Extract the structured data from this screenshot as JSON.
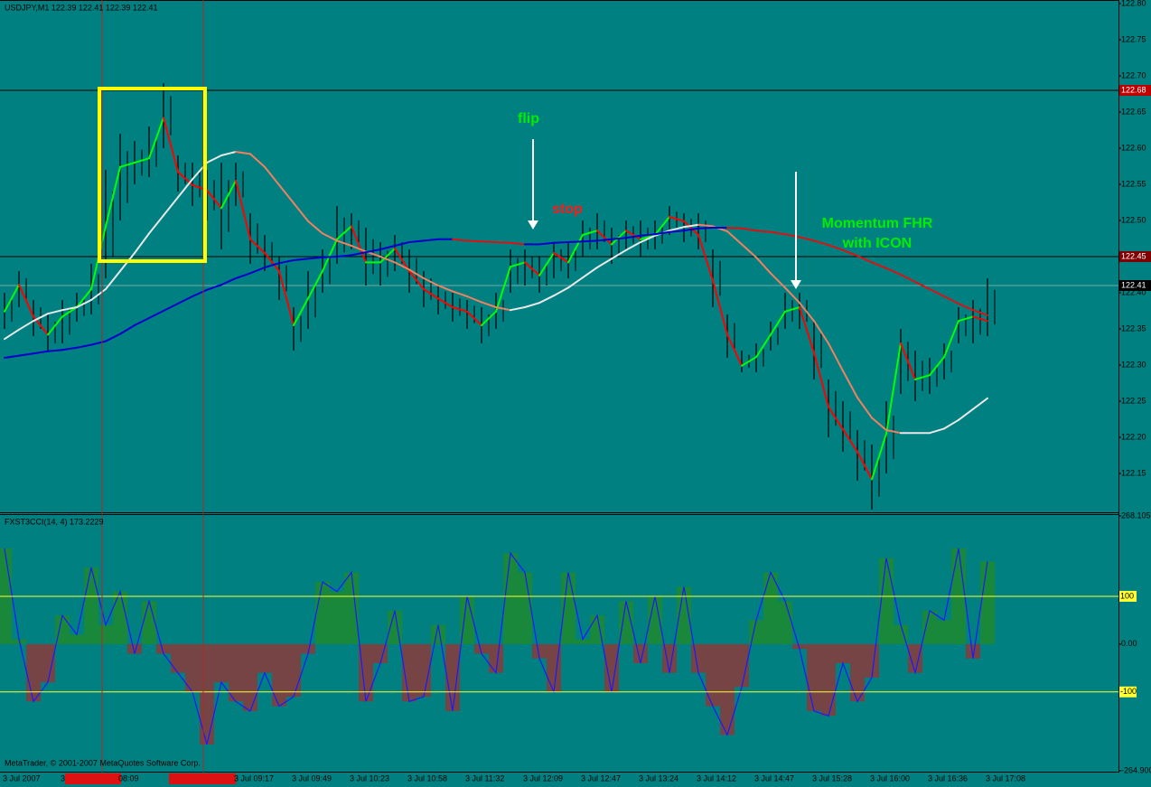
{
  "chart_data": [
    {
      "type": "ohlc",
      "title": "USDJPY,M1  122.39 122.41 122.39 122.41",
      "categories": [
        "3 Jul 2007",
        null,
        null,
        null,
        "3",
        null,
        null,
        null,
        "08:09",
        null,
        null,
        null,
        null,
        null,
        null,
        null,
        "3 Jul 09:17",
        null,
        null,
        null,
        "3 Jul 09:49",
        null,
        null,
        null,
        "3 Jul 10:23",
        null,
        null,
        null,
        "3 Jul 10:58",
        null,
        null,
        null,
        "3 Jul 11:32",
        null,
        null,
        null,
        "3 Jul 12:09",
        null,
        null,
        null,
        "3 Jul 12:47",
        null,
        null,
        null,
        "3 Jul 13:24",
        null,
        null,
        null,
        "3 Jul 14:12",
        null,
        null,
        null,
        "3 Jul 14:47",
        null,
        null,
        null,
        "3 Jul 15:28",
        null,
        null,
        null,
        "3 Jul 16:00",
        null,
        null,
        null,
        "3 Jul 16:36",
        null,
        null,
        null,
        "3 Jul 17:08"
      ],
      "high": [
        122.4,
        122.43,
        122.39,
        122.37,
        122.39,
        122.4,
        122.44,
        122.57,
        122.62,
        122.61,
        122.63,
        122.69,
        122.59,
        122.58,
        122.57,
        122.58,
        122.58,
        122.51,
        122.48,
        122.45,
        122.38,
        122.43,
        122.46,
        122.52,
        122.51,
        122.49,
        122.47,
        122.48,
        122.46,
        122.43,
        122.41,
        122.4,
        122.39,
        122.38,
        122.4,
        122.46,
        122.46,
        122.45,
        122.47,
        122.47,
        122.5,
        122.51,
        122.49,
        122.5,
        122.5,
        122.5,
        122.52,
        122.51,
        122.51,
        122.46,
        122.37,
        122.32,
        122.33,
        122.36,
        122.4,
        122.4,
        122.36,
        122.28,
        122.25,
        122.21,
        122.19,
        122.25,
        122.35,
        122.32,
        122.31,
        122.33,
        122.38,
        122.39,
        122.42
      ],
      "low": [
        122.35,
        122.38,
        122.34,
        122.32,
        122.33,
        122.36,
        122.37,
        122.42,
        122.5,
        122.55,
        122.56,
        122.6,
        122.54,
        122.52,
        122.5,
        122.46,
        122.52,
        122.44,
        122.43,
        122.39,
        122.32,
        122.35,
        122.4,
        122.44,
        122.46,
        122.41,
        122.41,
        122.43,
        122.4,
        122.38,
        122.37,
        122.36,
        122.35,
        122.33,
        122.35,
        122.4,
        122.41,
        122.4,
        122.42,
        122.42,
        122.45,
        122.46,
        122.44,
        122.46,
        122.45,
        122.46,
        122.48,
        122.47,
        122.46,
        122.38,
        122.31,
        122.29,
        122.29,
        122.32,
        122.35,
        122.35,
        122.28,
        122.2,
        122.18,
        122.14,
        122.1,
        122.15,
        122.26,
        122.25,
        122.26,
        122.28,
        122.33,
        122.33,
        122.34
      ],
      "color": "#000000",
      "series": [
        {
          "up_color": "#00ff00",
          "down_color": "#ff0000",
          "width": 2,
          "values": [
            122.374,
            122.411,
            122.367,
            122.342,
            122.367,
            122.38,
            122.405,
            122.492,
            122.574,
            122.58,
            122.586,
            122.642,
            122.567,
            122.549,
            122.542,
            122.517,
            122.555,
            122.474,
            122.455,
            122.43,
            122.355,
            122.392,
            122.43,
            122.474,
            122.492,
            122.442,
            122.442,
            122.461,
            122.43,
            122.405,
            122.392,
            122.38,
            122.374,
            122.355,
            122.374,
            122.436,
            122.442,
            122.424,
            122.455,
            122.442,
            122.48,
            122.486,
            122.467,
            122.486,
            122.474,
            122.48,
            122.505,
            122.499,
            122.48,
            122.417,
            122.342,
            122.299,
            122.311,
            122.342,
            122.374,
            122.38,
            122.317,
            122.242,
            122.211,
            122.18,
            122.142,
            122.205,
            122.33,
            122.28,
            122.286,
            122.311,
            122.361,
            122.367,
            122.361
          ]
        },
        {
          "up_color": "#e8e8e8",
          "down_color": "#f08060",
          "width": 2,
          "values": [
            122.336,
            122.349,
            122.361,
            122.371,
            122.376,
            122.38,
            122.39,
            122.405,
            122.43,
            122.455,
            122.482,
            122.507,
            122.532,
            122.557,
            122.58,
            122.59,
            122.595,
            122.592,
            122.574,
            122.549,
            122.524,
            122.499,
            122.482,
            122.472,
            122.465,
            122.457,
            122.45,
            122.442,
            122.432,
            122.42,
            122.41,
            122.402,
            122.395,
            122.387,
            122.38,
            122.376,
            122.38,
            122.386,
            122.396,
            122.407,
            122.421,
            122.435,
            122.447,
            122.459,
            122.47,
            122.479,
            122.486,
            122.491,
            122.494,
            122.492,
            122.485,
            122.467,
            122.449,
            122.427,
            122.407,
            122.386,
            122.361,
            122.33,
            122.292,
            122.255,
            122.227,
            122.21,
            122.206,
            122.206,
            122.206,
            122.212,
            122.224,
            122.239,
            122.254
          ]
        },
        {
          "up_color": "#0000cc",
          "down_color": "#dd1111",
          "width": 2,
          "values": [
            122.31,
            122.313,
            122.316,
            122.319,
            122.321,
            122.324,
            122.328,
            122.333,
            122.343,
            122.355,
            122.365,
            122.375,
            122.385,
            122.395,
            122.404,
            122.411,
            122.42,
            122.427,
            122.435,
            122.441,
            122.445,
            122.447,
            122.449,
            122.45,
            122.452,
            122.456,
            122.46,
            122.465,
            122.47,
            122.472,
            122.474,
            122.474,
            122.472,
            122.471,
            122.47,
            122.469,
            122.467,
            122.467,
            122.469,
            122.47,
            122.471,
            122.472,
            122.474,
            122.476,
            122.479,
            122.481,
            122.484,
            122.486,
            122.489,
            122.49,
            122.49,
            122.489,
            122.486,
            122.484,
            122.481,
            122.477,
            122.472,
            122.466,
            122.459,
            122.451,
            122.442,
            122.434,
            122.425,
            122.415,
            122.405,
            122.395,
            122.385,
            122.376,
            122.369
          ]
        }
      ],
      "price_lines": [
        {
          "value": 122.68,
          "color": "#c00000"
        },
        {
          "value": 122.45,
          "color": "#800000"
        },
        {
          "value": 122.41,
          "color": "#000000"
        }
      ],
      "ylim": [
        122.0975,
        122.8
      ],
      "yticks": [
        {
          "value": 122.8,
          "label": "122.80"
        },
        122.75,
        {
          "value": 122.7,
          "label": "122.70"
        },
        122.65,
        {
          "value": 122.6,
          "label": "122.60"
        },
        122.55,
        {
          "value": 122.5,
          "label": "122.50"
        },
        122.45,
        {
          "value": 122.4,
          "label": "122.40"
        },
        122.35,
        {
          "value": 122.3,
          "label": "122.30"
        },
        122.25,
        {
          "value": 122.2,
          "label": "122.20"
        },
        122.15
      ],
      "annotations": [
        "flip",
        "stop",
        "Momentum FHR",
        "with ICON"
      ]
    },
    {
      "type": "histogram",
      "title": "FXST3CCI(14, 4) 173.2229",
      "values": [
        200,
        10,
        -120,
        -80,
        60,
        20,
        160,
        40,
        110,
        -20,
        90,
        -20,
        -60,
        -100,
        -210,
        -80,
        -120,
        -140,
        -60,
        -130,
        -110,
        -20,
        130,
        110,
        150,
        -120,
        -40,
        70,
        -120,
        -110,
        40,
        -140,
        100,
        -20,
        -60,
        190,
        150,
        -30,
        -100,
        150,
        10,
        60,
        -100,
        90,
        -40,
        100,
        -60,
        120,
        -60,
        -130,
        -190,
        -90,
        50,
        150,
        90,
        -10,
        -140,
        -150,
        -40,
        -120,
        -70,
        180,
        40,
        -60,
        70,
        50,
        200,
        -30,
        173
      ],
      "up_color": "#1e8a2e",
      "down_color": "#8b3a3a",
      "line_color": "#1a1aff",
      "ylim": [
        -264.9,
        268.105
      ],
      "yticks": [
        {
          "value": 268.105,
          "label": "268.105"
        },
        {
          "value": 0,
          "label": "0.00"
        },
        {
          "value": -264.9,
          "label": "-264.900"
        }
      ],
      "levels": [
        100,
        -100
      ],
      "level_color": "#ffff33",
      "annotations": [
        "MetaTrader, © 2001-2007 MetaQuotes Software Corp."
      ]
    }
  ]
}
